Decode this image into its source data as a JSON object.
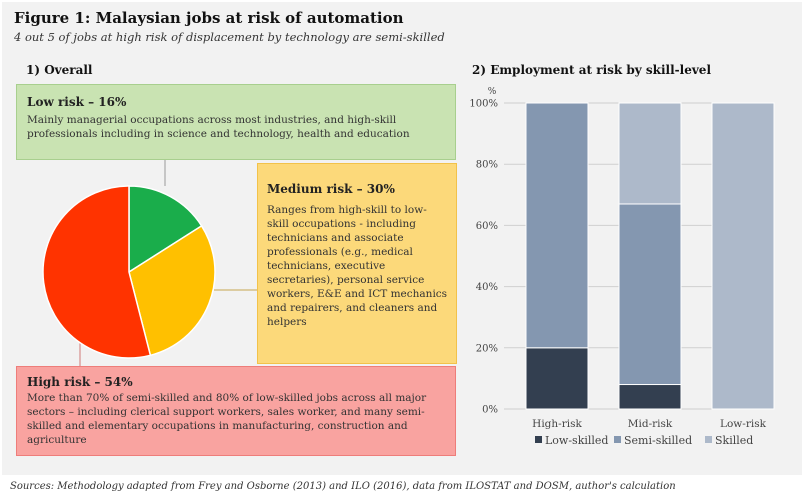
{
  "figure": {
    "title": "Figure 1: Malaysian jobs at risk of automation",
    "subtitle": "4 out 5 of jobs at high risk of displacement by technology are semi-skilled",
    "source": "Sources: Methodology adapted from Frey and Osborne (2013) and ILO (2016), data from ILOSTAT and DOSM, author's calculation"
  },
  "overall": {
    "section_title": "1) Overall",
    "low": {
      "heading": "Low risk – 16%",
      "body": "Mainly managerial occupations across most industries, and high-skill professionals including in science and technology, health and education"
    },
    "medium": {
      "heading": "Medium risk – 30%",
      "body": "Ranges from high-skill to low-skill occupations - including technicians and associate professionals (e.g., medical technicians, executive secretaries), personal service workers, E&E and ICT mechanics and repairers, and cleaners and helpers"
    },
    "high": {
      "heading": "High risk – 54%",
      "body": "More than 70% of semi-skilled and 80% of low-skilled jobs across all major sectors – including clerical support workers, sales worker, and many semi-skilled and elementary occupations in manufacturing, construction and agriculture"
    }
  },
  "skill": {
    "section_title": "2) Employment at risk by skill-level"
  },
  "colors": {
    "low": "#1aad4b",
    "medium": "#ffc000",
    "high": "#ff3300",
    "low_skilled": "#333f50",
    "semi_skilled": "#8497b0",
    "skilled": "#adb9ca",
    "grid": "#cfcfcf"
  },
  "chart_data": [
    {
      "type": "pie",
      "title": "1) Overall",
      "labels": [
        "Low risk",
        "Medium risk",
        "High risk"
      ],
      "values": [
        16,
        30,
        54
      ]
    },
    {
      "type": "bar",
      "stacked": true,
      "title": "2) Employment at risk by skill-level",
      "ylabel": "%",
      "ylim": [
        0,
        100
      ],
      "yticks": [
        "0%",
        "20%",
        "40%",
        "60%",
        "80%",
        "100%"
      ],
      "categories": [
        "High-risk",
        "Mid-risk",
        "Low-risk"
      ],
      "series": [
        {
          "name": "Low-skilled",
          "values": [
            20,
            8,
            0
          ]
        },
        {
          "name": "Semi-skilled",
          "values": [
            80,
            59,
            0
          ]
        },
        {
          "name": "Skilled",
          "values": [
            0,
            33,
            100
          ]
        }
      ],
      "legend": "bottom"
    }
  ]
}
